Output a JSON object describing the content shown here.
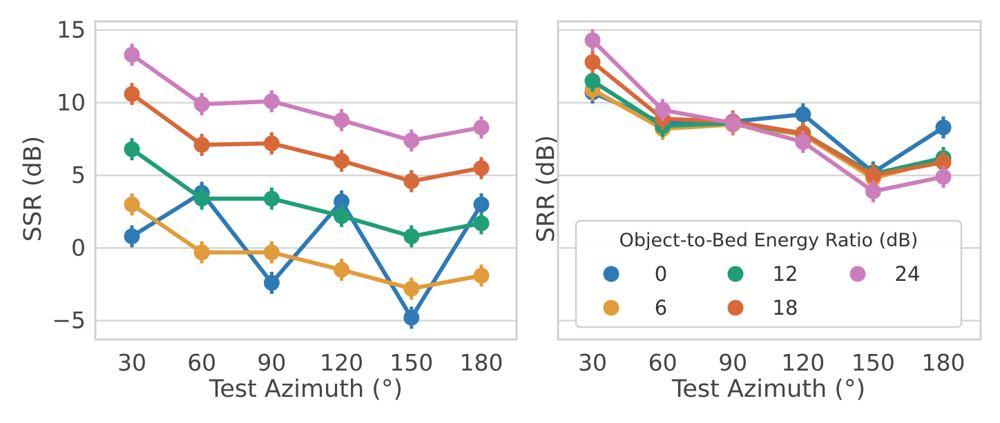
{
  "chart_data": [
    {
      "type": "line",
      "xlabel": "Test Azimuth (°)",
      "ylabel": "SSR (dB)",
      "categories": [
        "30",
        "60",
        "90",
        "120",
        "150",
        "180"
      ],
      "ylim": [
        -6.3,
        15.6
      ],
      "yticks": [
        15,
        10,
        5,
        0,
        -5
      ],
      "ytick_labels": [
        "15",
        "10",
        "5",
        "0",
        "−5"
      ],
      "grid": true,
      "series": [
        {
          "name": "0",
          "color": "#2e7ab6",
          "values": [
            0.8,
            3.8,
            -2.4,
            3.2,
            -4.8,
            3.0
          ]
        },
        {
          "name": "6",
          "color": "#e29b3a",
          "values": [
            3.0,
            -0.3,
            -0.3,
            -1.5,
            -2.8,
            -1.9
          ]
        },
        {
          "name": "12",
          "color": "#1f9e77",
          "values": [
            6.8,
            3.4,
            3.4,
            2.2,
            0.8,
            1.7
          ]
        },
        {
          "name": "18",
          "color": "#d96839",
          "values": [
            10.6,
            7.1,
            7.2,
            6.0,
            4.6,
            5.5
          ]
        },
        {
          "name": "24",
          "color": "#cc7dbb",
          "values": [
            13.3,
            9.9,
            10.1,
            8.8,
            7.4,
            8.3
          ]
        }
      ]
    },
    {
      "type": "line",
      "xlabel": "Test Azimuth (°)",
      "ylabel": "SRR (dB)",
      "categories": [
        "30",
        "60",
        "90",
        "120",
        "150",
        "180"
      ],
      "ylim": [
        -6.3,
        15.6
      ],
      "grid": true,
      "legend": {
        "title": "Object-to-Bed Energy Ratio (dB)",
        "placement": "lower-right",
        "columns": 3
      },
      "series": [
        {
          "name": "0",
          "color": "#2e7ab6",
          "values": [
            10.7,
            8.6,
            8.7,
            9.2,
            5.2,
            8.3
          ]
        },
        {
          "name": "6",
          "color": "#e29b3a",
          "values": [
            10.9,
            8.2,
            8.5,
            7.8,
            4.8,
            6.1
          ]
        },
        {
          "name": "12",
          "color": "#1f9e77",
          "values": [
            11.5,
            8.4,
            8.6,
            7.9,
            5.1,
            6.2
          ]
        },
        {
          "name": "18",
          "color": "#d96839",
          "values": [
            12.8,
            8.9,
            8.7,
            7.9,
            5.0,
            5.9
          ]
        },
        {
          "name": "24",
          "color": "#cc7dbb",
          "values": [
            14.3,
            9.5,
            8.6,
            7.3,
            3.9,
            4.9
          ]
        }
      ]
    }
  ]
}
